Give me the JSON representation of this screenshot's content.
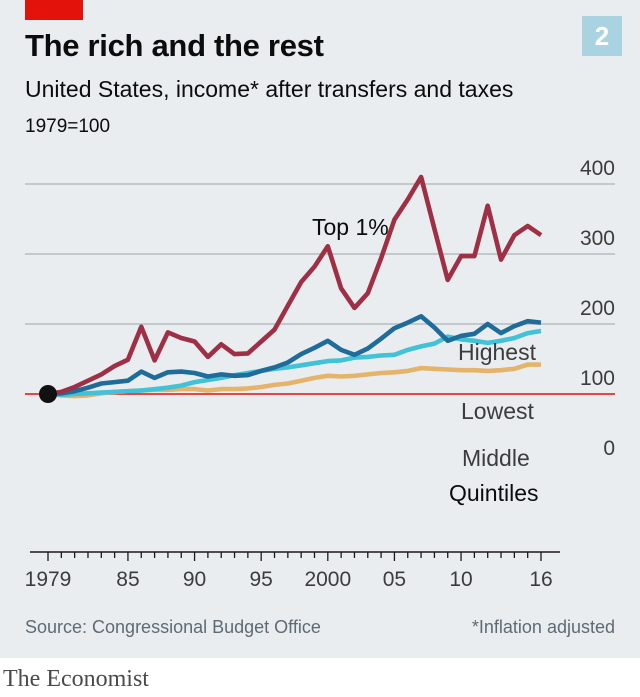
{
  "header": {
    "title": "The rich and the rest",
    "subtitle": "United States, income* after transfers and taxes",
    "index_note": "1979=100",
    "chart_number": "2"
  },
  "footer": {
    "source": "Source: Congressional Budget Office",
    "footnote": "*Inflation adjusted",
    "brand": "The Economist"
  },
  "colors": {
    "top1": "#9e2f44",
    "highest": "#1f6b9a",
    "lowest": "#41c2d6",
    "middle": "#e5b46a",
    "baseline": "#e3120b",
    "grid": "#b6bcc0",
    "brand_red": "#e3120b"
  },
  "chart_data": {
    "type": "line",
    "title": "The rich and the rest",
    "subtitle": "United States, income* after transfers and taxes",
    "ylabel": "1979=100",
    "xlim": [
      1979,
      2016
    ],
    "ylim": [
      0,
      400
    ],
    "y_ticks": [
      0,
      100,
      200,
      300,
      400
    ],
    "x_tick_labels": [
      {
        "value": 1979,
        "label": "1979"
      },
      {
        "value": 1985,
        "label": "85"
      },
      {
        "value": 1990,
        "label": "90"
      },
      {
        "value": 1995,
        "label": "95"
      },
      {
        "value": 2000,
        "label": "2000"
      },
      {
        "value": 2005,
        "label": "05"
      },
      {
        "value": 2010,
        "label": "10"
      },
      {
        "value": 2016,
        "label": "16"
      }
    ],
    "grid": "horizontal",
    "baseline_value": 100,
    "x": [
      1979,
      1980,
      1981,
      1982,
      1983,
      1984,
      1985,
      1986,
      1987,
      1988,
      1989,
      1990,
      1991,
      1992,
      1993,
      1994,
      1995,
      1996,
      1997,
      1998,
      1999,
      2000,
      2001,
      2002,
      2003,
      2004,
      2005,
      2006,
      2007,
      2008,
      2009,
      2010,
      2011,
      2012,
      2013,
      2014,
      2015,
      2016
    ],
    "series": [
      {
        "name": "Top 1%",
        "color_key": "top1",
        "values": [
          100,
          103,
          110,
          119,
          128,
          140,
          149,
          196,
          148,
          188,
          180,
          175,
          153,
          171,
          157,
          158,
          175,
          192,
          226,
          260,
          282,
          311,
          251,
          223,
          244,
          294,
          349,
          378,
          410,
          336,
          263,
          297,
          297,
          369,
          292,
          327,
          340,
          327
        ]
      },
      {
        "name": "Highest",
        "color_key": "highest",
        "values": [
          100,
          101,
          104,
          109,
          115,
          117,
          119,
          132,
          123,
          131,
          132,
          130,
          125,
          128,
          126,
          127,
          133,
          138,
          145,
          157,
          166,
          176,
          163,
          156,
          165,
          179,
          194,
          202,
          211,
          195,
          176,
          183,
          186,
          200,
          187,
          197,
          204,
          202
        ]
      },
      {
        "name": "Lowest",
        "color_key": "lowest",
        "values": [
          100,
          99,
          100,
          101,
          102,
          103,
          104,
          105,
          107,
          109,
          112,
          117,
          120,
          123,
          127,
          130,
          133,
          136,
          138,
          141,
          144,
          147,
          148,
          152,
          153,
          155,
          156,
          163,
          168,
          172,
          182,
          178,
          176,
          173,
          176,
          180,
          187,
          190
        ]
      },
      {
        "name": "Middle",
        "color_key": "middle",
        "values": [
          100,
          98,
          97,
          98,
          101,
          103,
          104,
          105,
          106,
          106,
          107,
          107,
          105,
          107,
          107,
          108,
          110,
          113,
          115,
          119,
          123,
          126,
          125,
          126,
          128,
          130,
          131,
          133,
          137,
          136,
          135,
          134,
          134,
          133,
          134,
          136,
          142,
          142
        ]
      }
    ],
    "annotations": {
      "top1": "Top 1%",
      "highest": "Highest",
      "lowest": "Lowest",
      "middle": "Middle",
      "quintiles": "Quintiles"
    }
  }
}
